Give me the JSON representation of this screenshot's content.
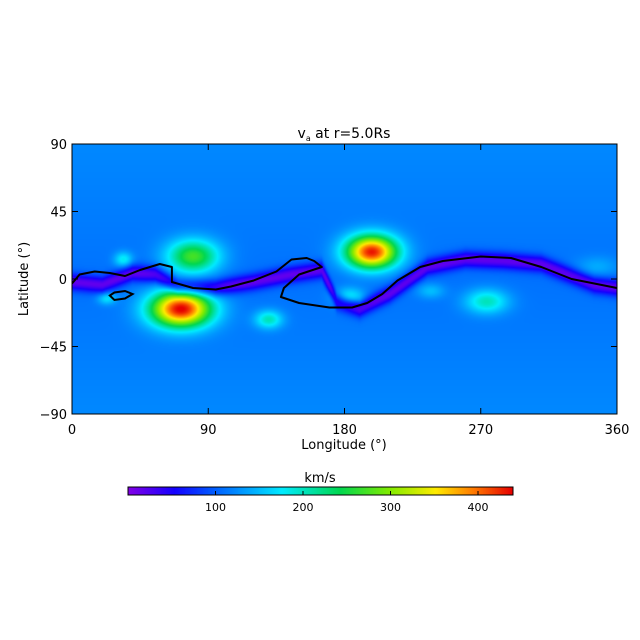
{
  "chart_data": {
    "type": "heatmap",
    "title_main": "v",
    "title_sub": "a",
    "title_rest": " at r=5.0Rs",
    "xlabel": "Longitude (°)",
    "ylabel": "Latitude (°)",
    "xlim": [
      0,
      360
    ],
    "ylim": [
      -90,
      90
    ],
    "xticks": [
      0,
      90,
      180,
      270,
      360
    ],
    "yticks": [
      90,
      45,
      0,
      -45,
      -90
    ],
    "xtick_labels": [
      "0",
      "90",
      "180",
      "270",
      "360"
    ],
    "ytick_labels": [
      "90",
      "45",
      "0",
      "−45",
      "−90"
    ],
    "background_speed": 110,
    "features": [
      {
        "lon": 80,
        "lat": 15,
        "peak": 270,
        "rlon": 17,
        "rlat": 11
      },
      {
        "lon": 198,
        "lat": 18,
        "peak": 430,
        "rlon": 17,
        "rlat": 11
      },
      {
        "lon": 72,
        "lat": -20,
        "peak": 440,
        "rlon": 20,
        "rlat": 12
      },
      {
        "lon": 34,
        "lat": 13,
        "peak": 180,
        "rlon": 6,
        "rlat": 5
      },
      {
        "lon": 23,
        "lat": -13,
        "peak": 170,
        "rlon": 6,
        "rlat": 4
      },
      {
        "lon": 130,
        "lat": -27,
        "peak": 200,
        "rlon": 9,
        "rlat": 6
      },
      {
        "lon": 183,
        "lat": -12,
        "peak": 185,
        "rlon": 10,
        "rlat": 6
      },
      {
        "lon": 237,
        "lat": -8,
        "peak": 150,
        "rlon": 9,
        "rlat": 5
      },
      {
        "lon": 274,
        "lat": -15,
        "peak": 200,
        "rlon": 14,
        "rlat": 8
      },
      {
        "lon": 347,
        "lat": 8,
        "peak": 140,
        "rlon": 14,
        "rlat": 7
      }
    ],
    "slow_band": [
      [
        0,
        -2
      ],
      [
        20,
        -4
      ],
      [
        40,
        4
      ],
      [
        55,
        3
      ],
      [
        70,
        -5
      ],
      [
        95,
        -6
      ],
      [
        120,
        -2
      ],
      [
        145,
        3
      ],
      [
        165,
        6
      ],
      [
        175,
        -15
      ],
      [
        190,
        -20
      ],
      [
        210,
        -10
      ],
      [
        235,
        8
      ],
      [
        260,
        13
      ],
      [
        285,
        12
      ],
      [
        310,
        10
      ],
      [
        330,
        2
      ],
      [
        345,
        -4
      ],
      [
        360,
        -6
      ]
    ],
    "neutral_line": [
      [
        0,
        -3
      ],
      [
        5,
        3
      ],
      [
        15,
        5
      ],
      [
        25,
        4
      ],
      [
        35,
        2
      ],
      [
        45,
        6
      ],
      [
        58,
        10
      ],
      [
        66,
        8
      ],
      [
        66,
        -2
      ],
      [
        80,
        -6
      ],
      [
        95,
        -7
      ],
      [
        105,
        -5
      ],
      [
        120,
        -1
      ],
      [
        135,
        5
      ],
      [
        145,
        13
      ],
      [
        155,
        14
      ],
      [
        160,
        12
      ],
      [
        165,
        8
      ],
      [
        150,
        3
      ],
      [
        140,
        -6
      ],
      [
        138,
        -12
      ],
      [
        150,
        -16
      ],
      [
        170,
        -19
      ],
      [
        185,
        -19
      ],
      [
        195,
        -16
      ],
      [
        205,
        -10
      ],
      [
        215,
        -1
      ],
      [
        230,
        8
      ],
      [
        245,
        12
      ],
      [
        270,
        15
      ],
      [
        290,
        14
      ],
      [
        310,
        8
      ],
      [
        330,
        0
      ],
      [
        345,
        -3
      ],
      [
        360,
        -6
      ]
    ],
    "island_loop": [
      [
        35,
        -13
      ],
      [
        40,
        -10
      ],
      [
        35,
        -8
      ],
      [
        28,
        -9
      ],
      [
        25,
        -11
      ],
      [
        28,
        -14
      ],
      [
        35,
        -13
      ]
    ],
    "colorbar": {
      "unit": "km/s",
      "min": 0,
      "max": 440,
      "ticks": [
        100,
        200,
        300,
        400
      ],
      "tick_labels": [
        "100",
        "200",
        "300",
        "400"
      ]
    }
  }
}
